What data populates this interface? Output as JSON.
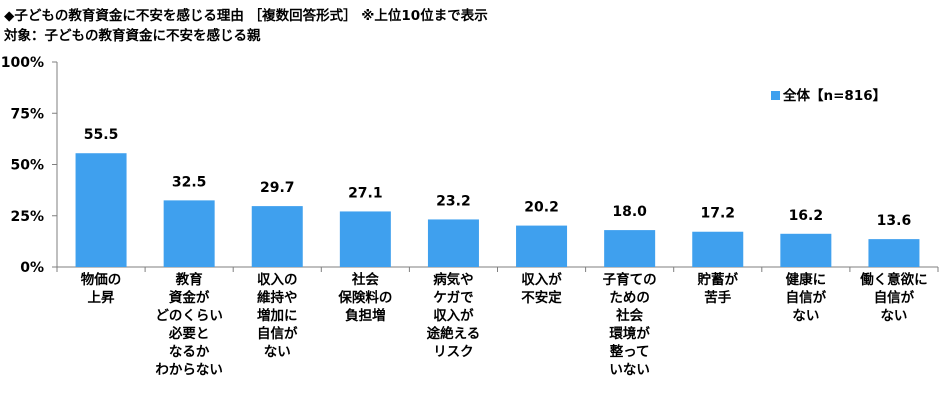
{
  "title": "◆子どもの教育資金に不安を感じる理由 ［複数回答形式］ ※上位10位まで表示",
  "subtitle": "対象：子どもの教育資金に不安を感じる親",
  "colors": {
    "bar": "#3fa0ee",
    "axis": "#7f7f7f"
  },
  "chart_data": {
    "type": "bar",
    "title": "◆子どもの教育資金に不安を感じる理由 ［複数回答形式］ ※上位10位まで表示",
    "subtitle": "対象：子どもの教育資金に不安を感じる親",
    "ylim": [
      0,
      100
    ],
    "yticks": [
      "100%",
      "75%",
      "50%",
      "25%",
      "0%"
    ],
    "ytick_values": [
      100,
      75,
      50,
      25,
      0
    ],
    "grid": false,
    "legend": "top-right",
    "categories": [
      [
        "物価の",
        "上昇"
      ],
      [
        "教育",
        "資金が",
        "どのくらい",
        "必要と",
        "なるか",
        "わからない"
      ],
      [
        "収入の",
        "維持や",
        "増加に",
        "自信が",
        "ない"
      ],
      [
        "社会",
        "保険料の",
        "負担増"
      ],
      [
        "病気や",
        "ケガで",
        "収入が",
        "途絶える",
        "リスク"
      ],
      [
        "収入が",
        "不安定"
      ],
      [
        "子育ての",
        "ための",
        "社会",
        "環境が",
        "整って",
        "いない"
      ],
      [
        "貯蓄が",
        "苦手"
      ],
      [
        "健康に",
        "自信が",
        "ない"
      ],
      [
        "働く意欲に",
        "自信が",
        "ない"
      ]
    ],
    "series": [
      {
        "name": "全体【n=816】",
        "values": [
          55.5,
          32.5,
          29.7,
          27.1,
          23.2,
          20.2,
          18.0,
          17.2,
          16.2,
          13.6
        ],
        "labels": [
          "55.5",
          "32.5",
          "29.7",
          "27.1",
          "23.2",
          "20.2",
          "18.0",
          "17.2",
          "16.2",
          "13.6"
        ]
      }
    ]
  }
}
